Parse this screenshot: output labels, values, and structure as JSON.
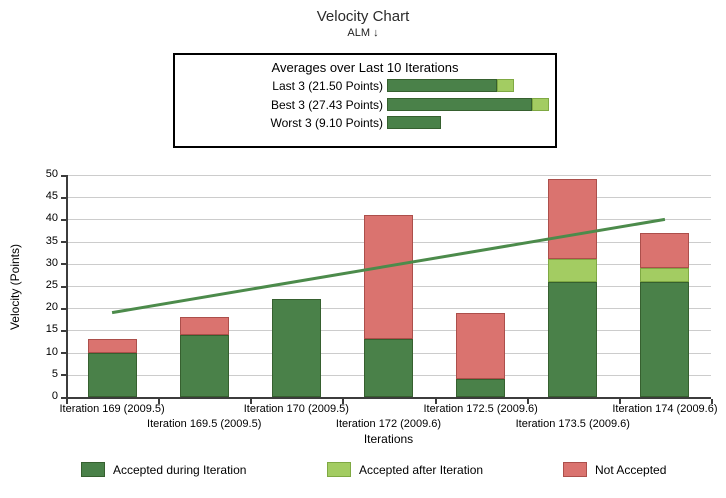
{
  "title": "Velocity Chart",
  "subtitle": "ALM ↓",
  "averages_panel": {
    "title": "Averages over Last 10 Iterations",
    "rows": [
      {
        "label": "Last 3 (21.50 Points)",
        "accepted_during": 18.6,
        "accepted_after": 2.9
      },
      {
        "label": "Best 3 (27.43 Points)",
        "accepted_during": 24.6,
        "accepted_after": 2.8
      },
      {
        "label": "Worst 3 (9.10 Points)",
        "accepted_during": 9.1,
        "accepted_after": 0
      }
    ]
  },
  "chart_data": {
    "type": "bar",
    "subtype": "stacked-bars-with-trend-line",
    "title": "Velocity Chart",
    "xlabel": "Iterations",
    "ylabel": "Velocity (Points)",
    "ylim": [
      0,
      50
    ],
    "ytick_step": 5,
    "grid": true,
    "categories": [
      "Iteration 169 (2009.5)",
      "Iteration 169.5 (2009.5)",
      "Iteration 170 (2009.5)",
      "Iteration 172 (2009.6)",
      "Iteration 172.5 (2009.6)",
      "Iteration 173.5 (2009.6)",
      "Iteration 174 (2009.6)"
    ],
    "series": [
      {
        "name": "Accepted during Iteration",
        "color": "#4A8149",
        "border": "#36602F",
        "values": [
          10,
          14,
          22,
          13,
          4,
          26,
          26
        ]
      },
      {
        "name": "Accepted after Iteration",
        "color": "#A3CC62",
        "border": "#7FA943",
        "values": [
          0,
          0,
          0,
          0,
          0,
          5,
          3
        ]
      },
      {
        "name": "Not Accepted",
        "color": "#DA736F",
        "border": "#AC4F4B",
        "values": [
          3,
          4,
          0,
          28,
          15,
          18,
          8
        ]
      }
    ],
    "stack_totals": [
      13,
      18,
      22,
      41,
      19,
      49,
      37
    ],
    "trend_line": {
      "start_value": 19,
      "end_value": 40,
      "color": "#4C8B4B"
    },
    "legend_position": "bottom"
  },
  "colors": {
    "gridline": "#CCCCCC",
    "axis": "#3C3C3C",
    "background": "#FFFFFF"
  }
}
